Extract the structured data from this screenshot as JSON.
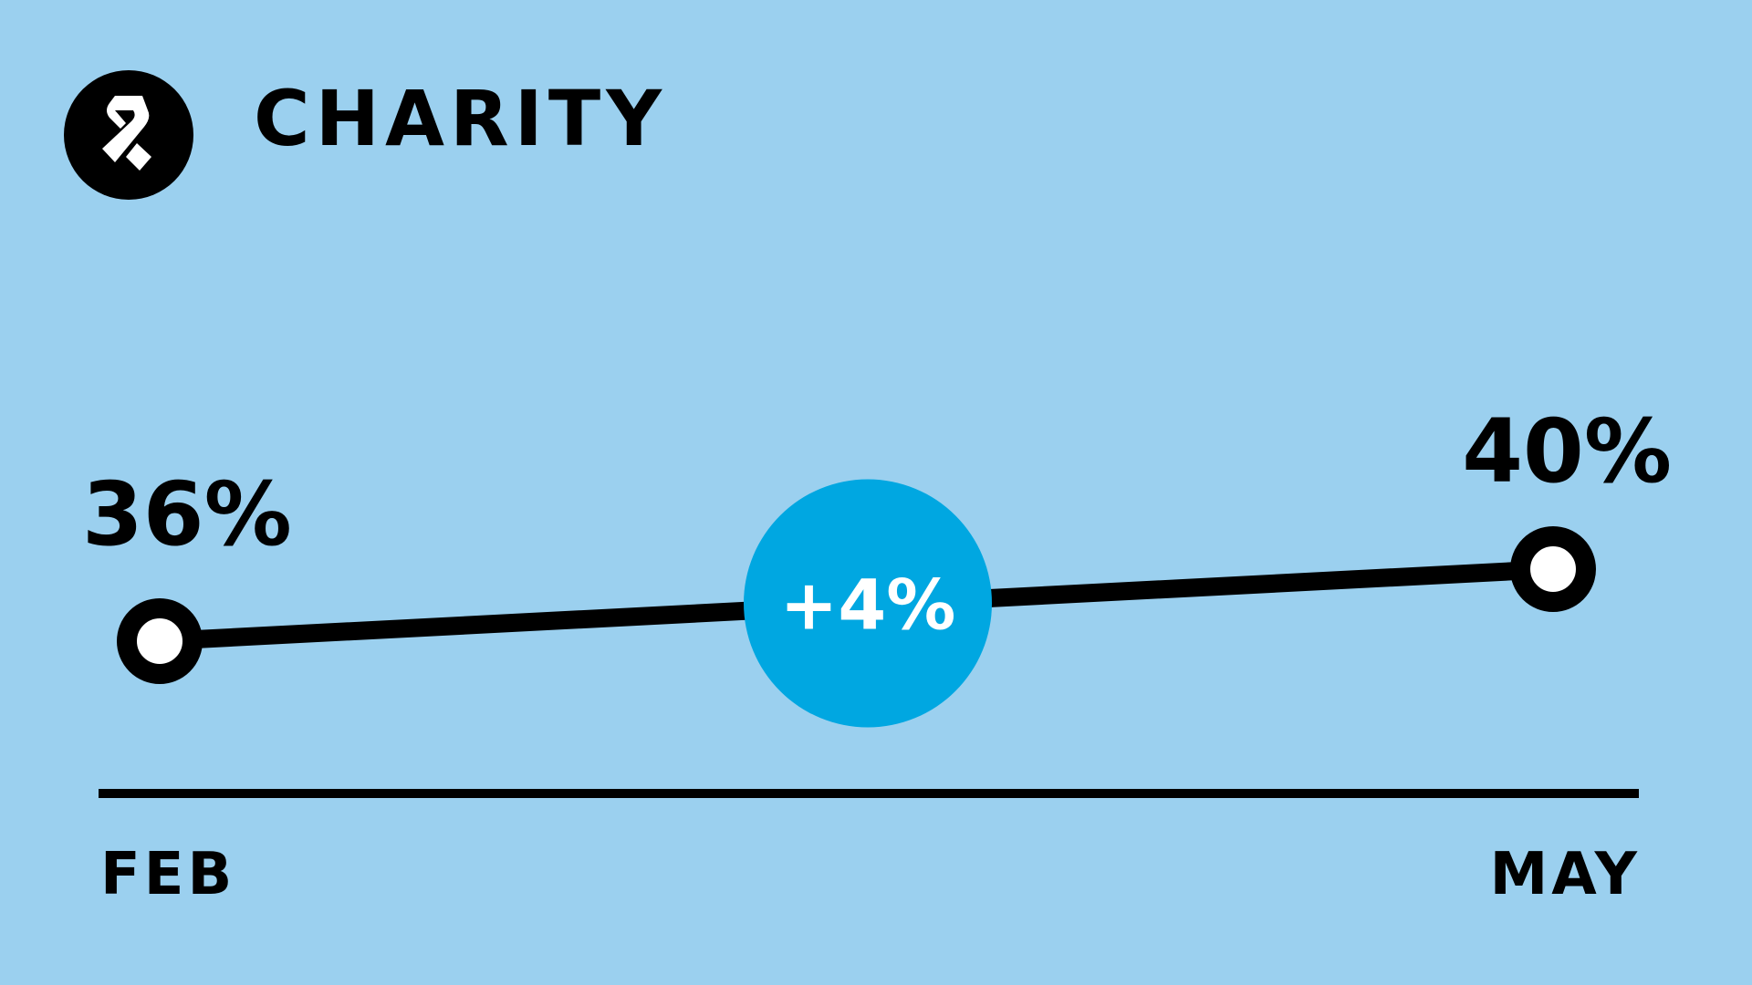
{
  "header": {
    "title": "CHARITY",
    "logo_icon": "ribbon-icon"
  },
  "colors": {
    "background": "#9bd0ef",
    "line": "#000000",
    "marker_fill": "#ffffff",
    "badge": "#00a7e1",
    "badge_text": "#ffffff"
  },
  "chart_data": {
    "type": "line",
    "title": "",
    "xlabel": "",
    "ylabel": "",
    "categories": [
      "FEB",
      "MAY"
    ],
    "values": [
      36,
      40
    ],
    "value_labels": [
      "36%",
      "40%"
    ],
    "change_label": "+4%",
    "ylim": [
      0,
      100
    ],
    "grid": false,
    "legend": "none"
  }
}
